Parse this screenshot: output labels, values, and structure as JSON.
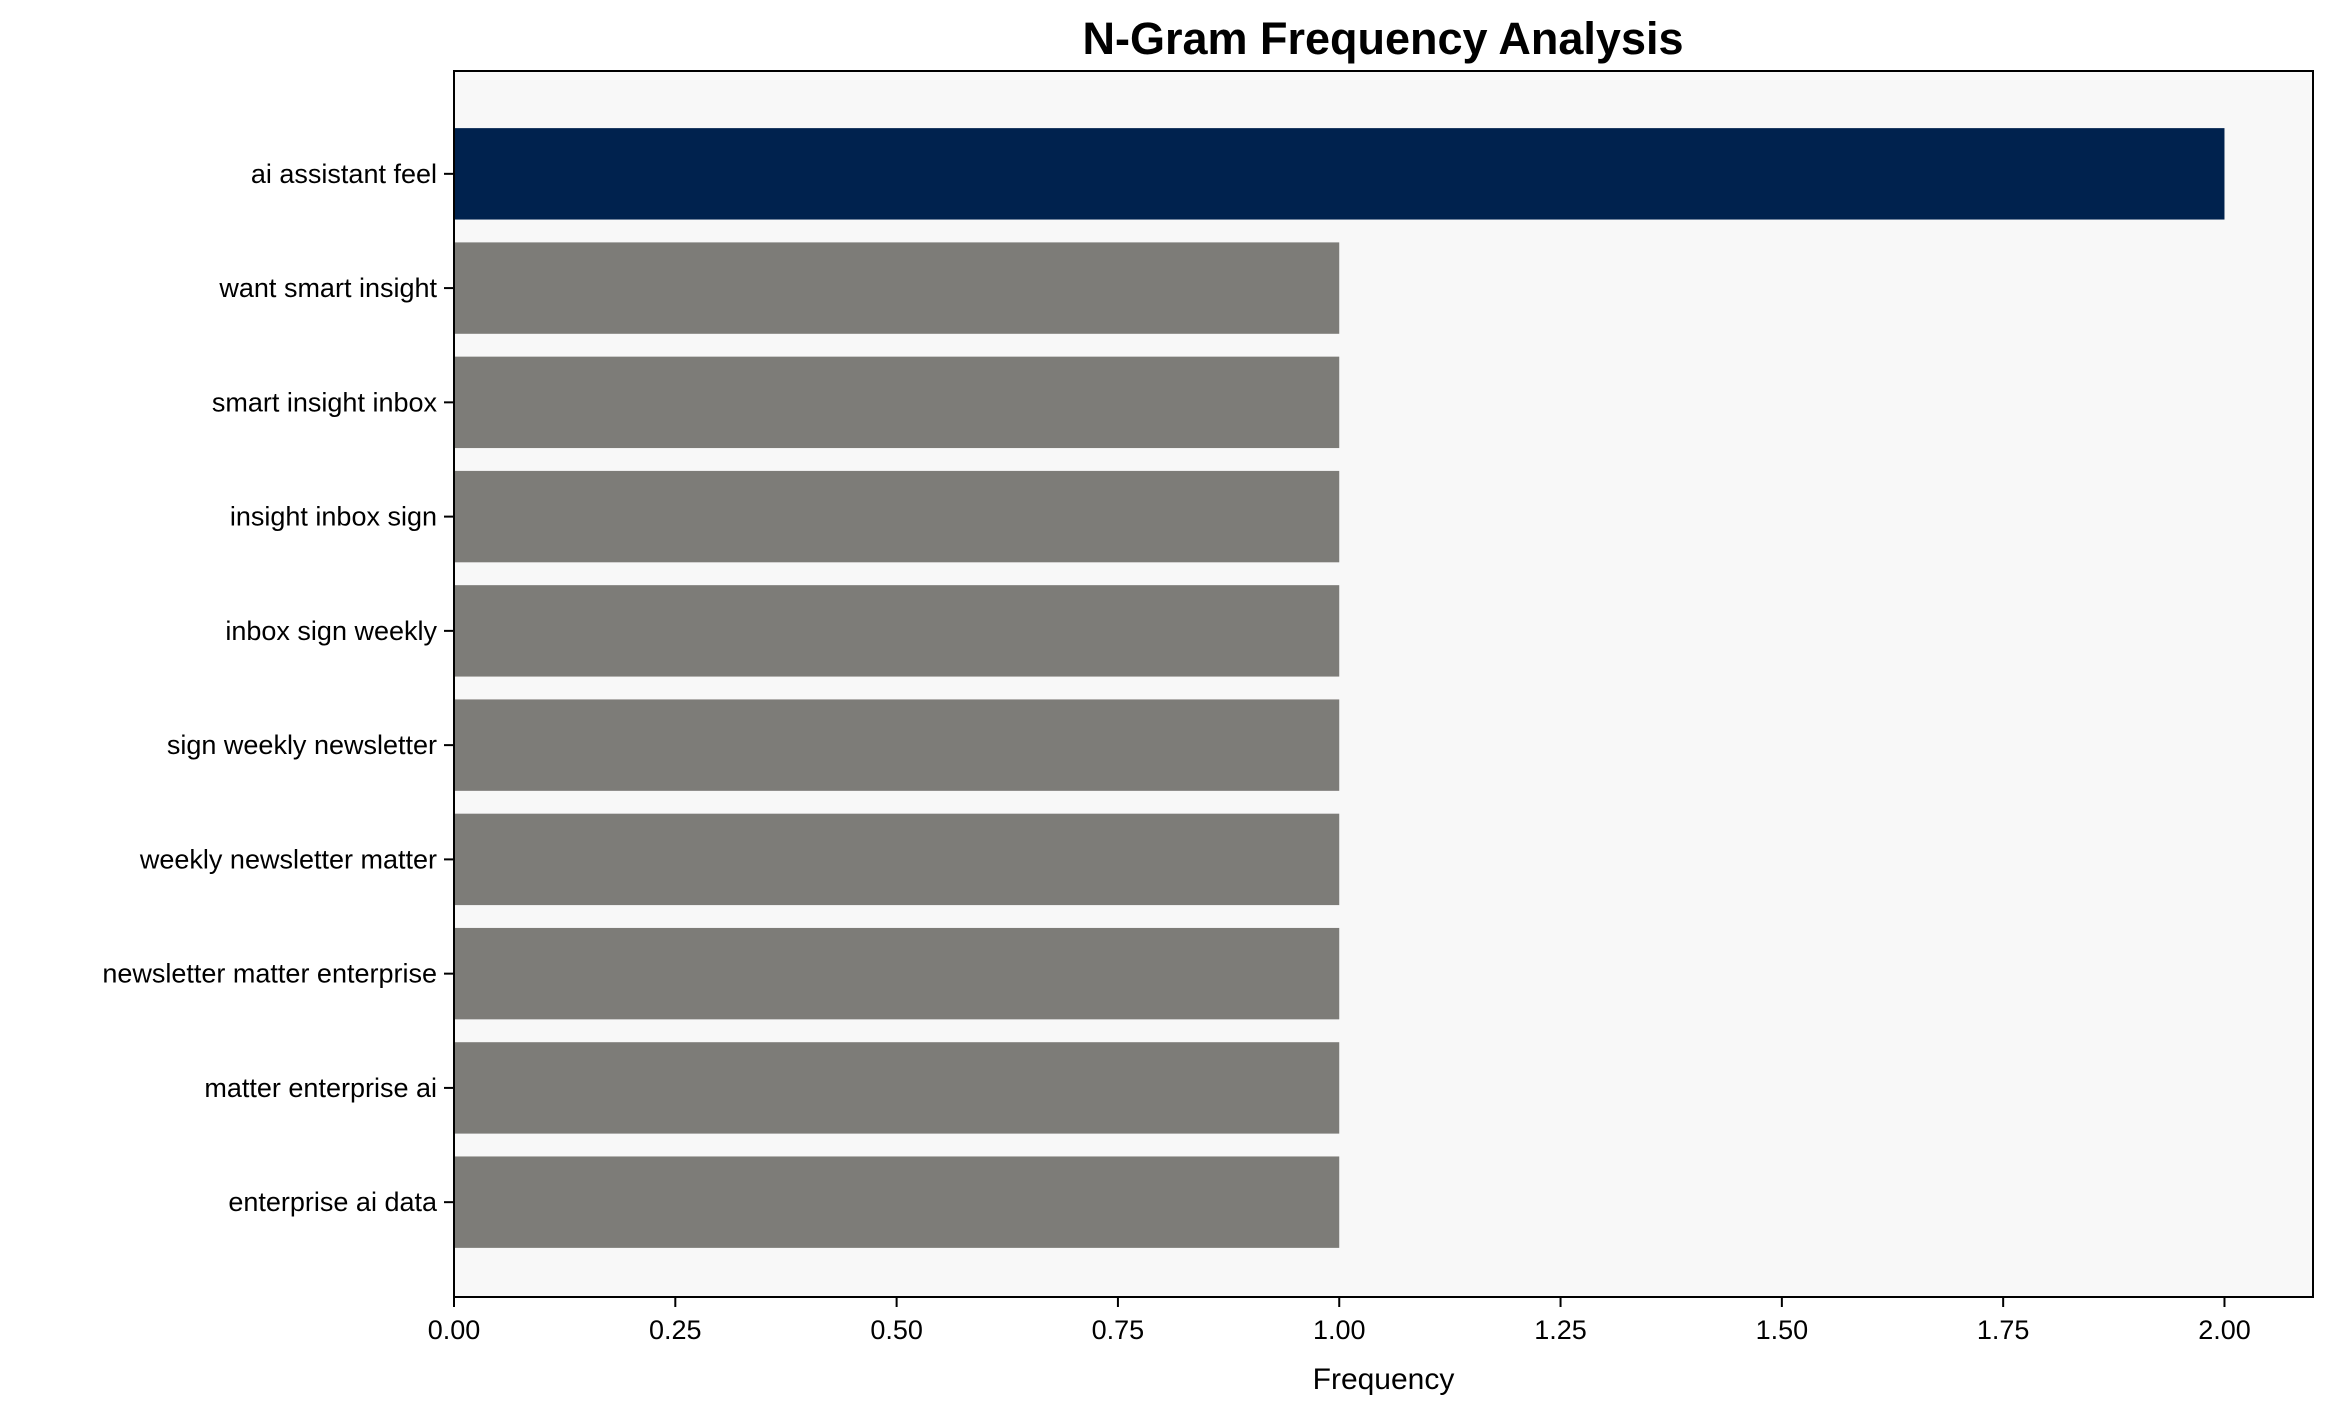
{
  "chart_data": {
    "type": "bar",
    "orientation": "horizontal",
    "title": "N-Gram Frequency Analysis",
    "xlabel": "Frequency",
    "ylabel": "",
    "categories": [
      "ai assistant feel",
      "want smart insight",
      "smart insight inbox",
      "insight inbox sign",
      "inbox sign weekly",
      "sign weekly newsletter",
      "weekly newsletter matter",
      "newsletter matter enterprise",
      "matter enterprise ai",
      "enterprise ai data"
    ],
    "values": [
      2,
      1,
      1,
      1,
      1,
      1,
      1,
      1,
      1,
      1
    ],
    "xlim": [
      0,
      2.1
    ],
    "xticks": [
      "0.00",
      "0.25",
      "0.50",
      "0.75",
      "1.00",
      "1.25",
      "1.50",
      "1.75",
      "2.00"
    ],
    "grid": false,
    "colors": {
      "highlight": "#00224e",
      "default": "#7d7c78",
      "plot_background": "#f8f8f8"
    }
  }
}
